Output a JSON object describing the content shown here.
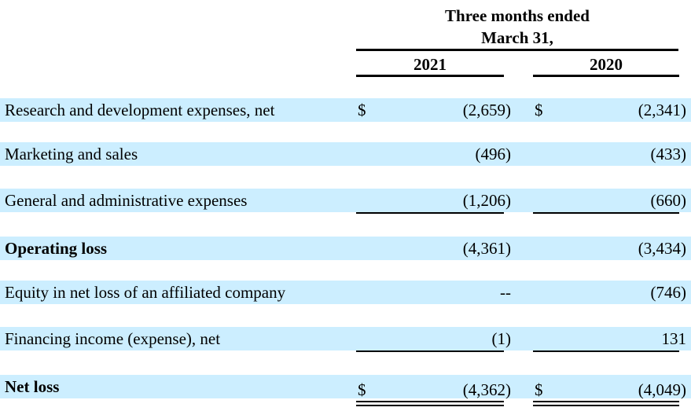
{
  "header": {
    "period_line1": "Three months ended",
    "period_line2": "March 31,",
    "year_a": "2021",
    "year_b": "2020"
  },
  "currency_symbol": "$",
  "rows": [
    {
      "label": "Research and development expenses, net",
      "a": "(2,659)",
      "b": "(2,341)"
    },
    {
      "label": "Marketing and sales",
      "a": "(496)",
      "b": "(433)"
    },
    {
      "label": "General and administrative expenses",
      "a": "(1,206)",
      "b": "(660)"
    },
    {
      "label": "Operating loss",
      "a": "(4,361)",
      "b": "(3,434)"
    },
    {
      "label": "Equity in net loss of an affiliated company",
      "a": "--",
      "b": "(746)"
    },
    {
      "label": "Financing income (expense), net",
      "a": "(1)",
      "b": "131"
    },
    {
      "label": "Net loss",
      "a": "(4,362)",
      "b": "(4,049)"
    }
  ],
  "colors": {
    "row_band": "#cceeff",
    "rule": "#000000"
  }
}
